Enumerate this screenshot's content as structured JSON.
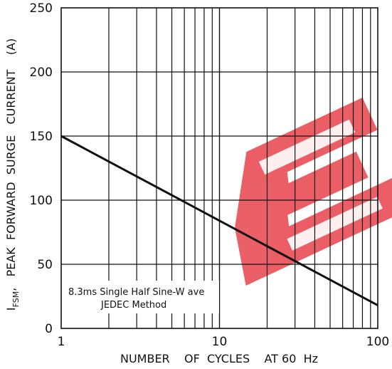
{
  "chart_data": {
    "type": "line",
    "title": "",
    "xlabel": "NUMBER    OF  CYCLES    AT 60  Hz",
    "ylabel_main": "I",
    "ylabel_sub": "FSM",
    "ylabel_rest": ",   PEAK  FORWARD  SURGE   CURRENT    (A)",
    "x_scale": "log",
    "xlim": [
      1,
      100
    ],
    "ylim": [
      0,
      250
    ],
    "x_tick_labels": [
      "1",
      "10",
      "100"
    ],
    "y_tick_labels": [
      "0",
      "50",
      "100",
      "150",
      "200",
      "250"
    ],
    "y_ticks": [
      0,
      50,
      100,
      150,
      200,
      250
    ],
    "grid": true,
    "series": [
      {
        "x": [
          1,
          100
        ],
        "y": [
          150,
          18
        ]
      }
    ],
    "annotation": {
      "line1": "8.3ms   Single   Half  Sine-W ave",
      "line2": "JEDEC    Method"
    },
    "colors": {
      "line": "#111111",
      "grid": "#111111",
      "watermark": "#e8434b"
    }
  }
}
